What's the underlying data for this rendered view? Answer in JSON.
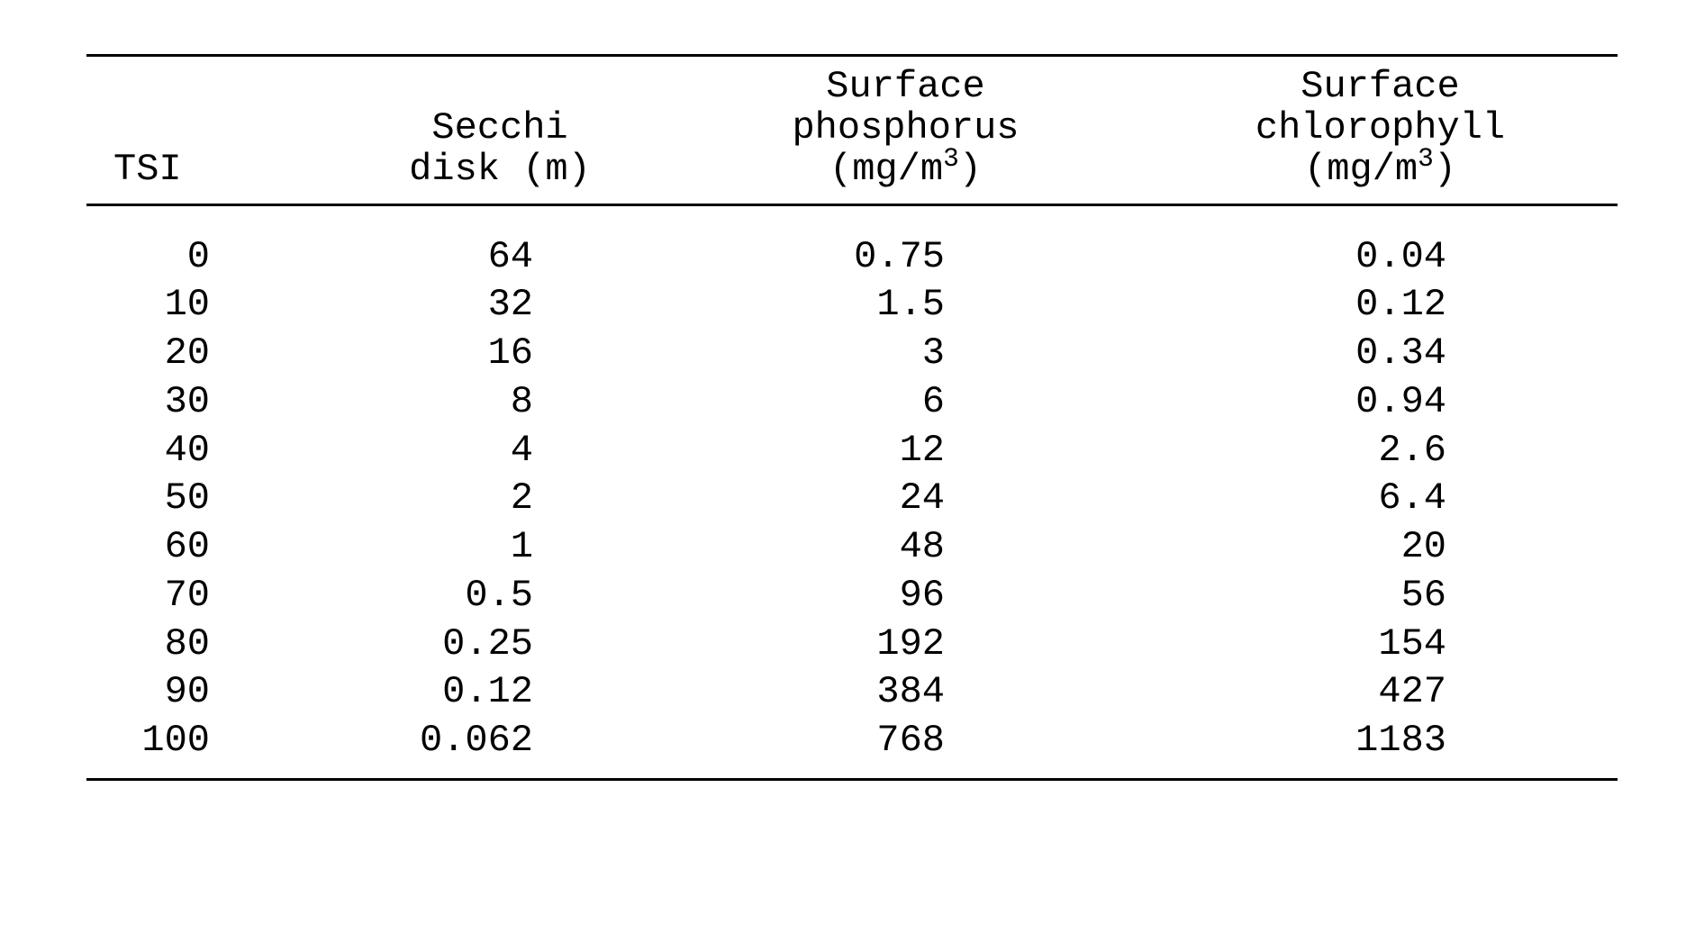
{
  "table": {
    "type": "table",
    "background_color": "#ffffff",
    "text_color": "#000000",
    "rule_color": "#000000",
    "font_family": "Courier New",
    "font_size_pt": 32,
    "columns": [
      {
        "key": "tsi",
        "header_lines": [
          "",
          "",
          "TSI"
        ],
        "align": "right",
        "width_pct": 16
      },
      {
        "key": "secchi",
        "header_lines": [
          "",
          "Secchi",
          "disk (m)"
        ],
        "align": "right",
        "width_pct": 22
      },
      {
        "key": "phos",
        "header_lines": [
          "Surface",
          "phosphorus",
          "(mg/m³)"
        ],
        "align": "right",
        "width_pct": 31
      },
      {
        "key": "chl",
        "header_lines": [
          "Surface",
          "chlorophyll",
          "(mg/m³)"
        ],
        "align": "right",
        "width_pct": 31
      }
    ],
    "header_unit_has_superscript_3": true,
    "rows": [
      {
        "tsi": "0",
        "secchi": "64",
        "phos": "0.75",
        "chl": "0.04"
      },
      {
        "tsi": "10",
        "secchi": "32",
        "phos": "1.5",
        "chl": "0.12"
      },
      {
        "tsi": "20",
        "secchi": "16",
        "phos": "3",
        "chl": "0.34"
      },
      {
        "tsi": "30",
        "secchi": "8",
        "phos": "6",
        "chl": "0.94"
      },
      {
        "tsi": "40",
        "secchi": "4",
        "phos": "12",
        "chl": "2.6"
      },
      {
        "tsi": "50",
        "secchi": "2",
        "phos": "24",
        "chl": "6.4"
      },
      {
        "tsi": "60",
        "secchi": "1",
        "phos": "48",
        "chl": "20"
      },
      {
        "tsi": "70",
        "secchi": "0.5",
        "phos": "96",
        "chl": "56"
      },
      {
        "tsi": "80",
        "secchi": "0.25",
        "phos": "192",
        "chl": "154"
      },
      {
        "tsi": "90",
        "secchi": "0.12",
        "phos": "384",
        "chl": "427"
      },
      {
        "tsi": "100",
        "secchi": "0.062",
        "phos": "768",
        "chl": "1183"
      }
    ]
  }
}
